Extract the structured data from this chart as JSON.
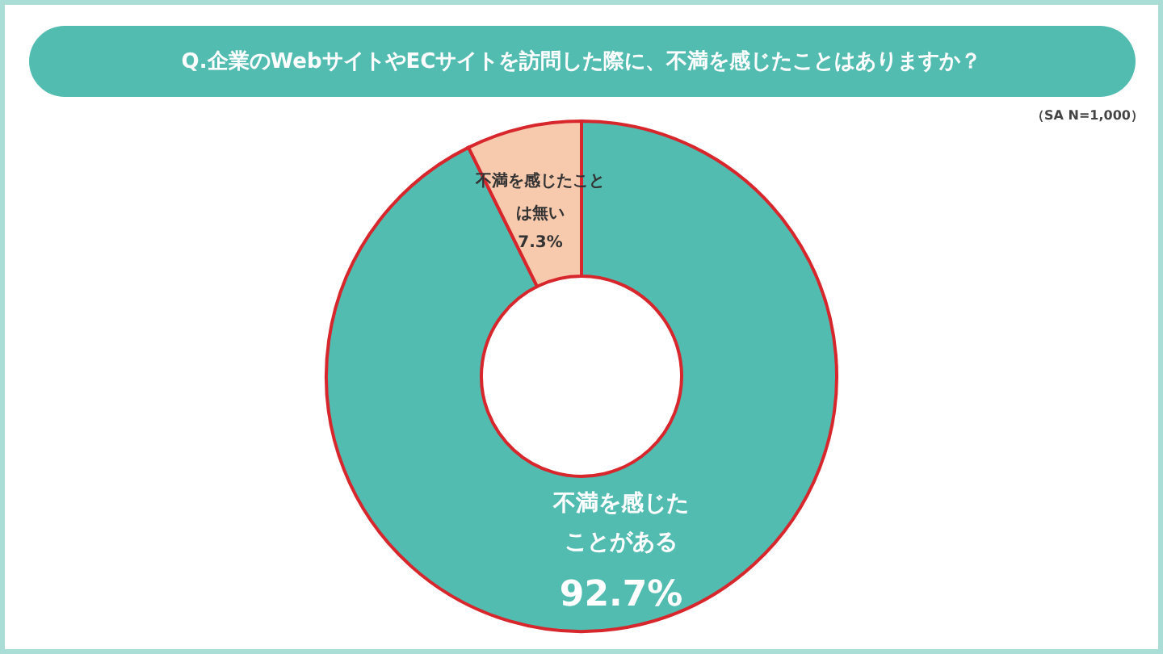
{
  "chart_data": {
    "type": "donut",
    "title": "Q.企業のWebサイトやECサイトを訪問した際に、不満を感じたことはありますか？",
    "annotations": [
      "（SA N=1,000）"
    ],
    "categories": [
      "不満を感じたことがある",
      "不満を感じたことは無い"
    ],
    "values": [
      92.7,
      7.3
    ],
    "colors": [
      "#52bcb1",
      "#f7c9ad"
    ],
    "value_labels": [
      "92.7%",
      "7.3%"
    ]
  }
}
